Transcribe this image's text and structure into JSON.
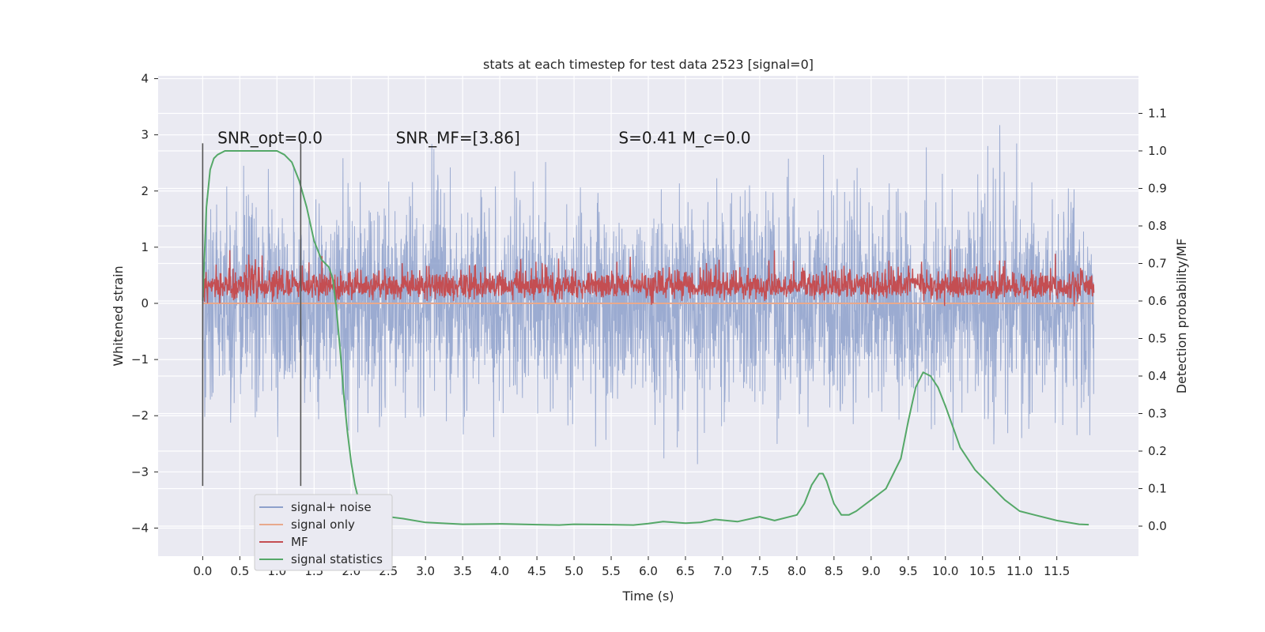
{
  "chart_data": {
    "type": "line",
    "title": "stats at each timestep for test data 2523 [signal=0]",
    "xlabel": "Time (s)",
    "ylabel": "Whitened strain",
    "y2label": "Detection probability/MF",
    "xlim": [
      -0.6,
      12.6
    ],
    "ylim": [
      -4.5,
      4.05
    ],
    "y2lim": [
      -0.08,
      1.2
    ],
    "xticks": [
      0.0,
      0.5,
      1.0,
      1.5,
      2.0,
      2.5,
      3.0,
      3.5,
      4.0,
      4.5,
      5.0,
      5.5,
      6.0,
      6.5,
      7.0,
      7.5,
      8.0,
      8.5,
      9.0,
      9.5,
      10.0,
      10.5,
      11.0,
      11.5
    ],
    "xtick_labels": [
      "0.0",
      "0.5",
      "1.0",
      "1.5",
      "2.0",
      "2.5",
      "3.0",
      "3.5",
      "4.0",
      "4.5",
      "5.0",
      "5.5",
      "6.0",
      "6.5",
      "7.0",
      "7.5",
      "8.0",
      "8.5",
      "9.0",
      "9.5",
      "10.0",
      "10.5",
      "11.0",
      "11.5"
    ],
    "yticks": [
      -4,
      -3,
      -2,
      -1,
      0,
      1,
      2,
      3,
      4
    ],
    "ytick_labels": [
      "−4",
      "−3",
      "−2",
      "−1",
      "0",
      "1",
      "2",
      "3",
      "4"
    ],
    "y2ticks": [
      0.0,
      0.1,
      0.2,
      0.3,
      0.4,
      0.5,
      0.6,
      0.7,
      0.8,
      0.9,
      1.0,
      1.1
    ],
    "y2tick_labels": [
      "0.0",
      "0.1",
      "0.2",
      "0.3",
      "0.4",
      "0.5",
      "0.6",
      "0.7",
      "0.8",
      "0.9",
      "1.0",
      "1.1"
    ],
    "grid": true,
    "legend_position": "lower-left",
    "annotations": [
      {
        "name": "snr-opt",
        "text": "SNR_opt=0.0",
        "x": 0.2,
        "y": 2.85
      },
      {
        "name": "snr-mf",
        "text": "SNR_MF=[3.86]",
        "x": 2.6,
        "y": 2.85
      },
      {
        "name": "s-mc",
        "text": "S=0.41   M_c=0.0",
        "x": 5.6,
        "y": 2.85
      }
    ],
    "vertical_markers": [
      {
        "x": 0.0,
        "y": [
          -3.25,
          2.85
        ]
      },
      {
        "x": 1.32,
        "y": [
          -3.25,
          2.85
        ]
      }
    ],
    "series": [
      {
        "name": "signal+ noise",
        "color": "#8da0cb",
        "axis": "left",
        "t_range": [
          0.0,
          12.0
        ],
        "description_values": {
          "mean": 0.0,
          "std": 0.9,
          "min": -4.1,
          "max": 3.7
        }
      },
      {
        "name": "signal only",
        "color": "#e8a98d",
        "axis": "left",
        "t_range": [
          0.0,
          12.0
        ],
        "constant": 0.0
      },
      {
        "name": "MF",
        "color": "#c44e52",
        "axis": "left",
        "t_range": [
          0.0,
          12.0
        ],
        "description_values": {
          "mean": 0.3,
          "min": -0.05,
          "max": 1.0
        }
      },
      {
        "name": "signal statistics",
        "color": "#55a868",
        "axis": "right",
        "x": [
          0.0,
          0.05,
          0.1,
          0.15,
          0.2,
          0.3,
          0.5,
          0.8,
          1.0,
          1.1,
          1.2,
          1.3,
          1.4,
          1.5,
          1.6,
          1.7,
          1.75,
          1.8,
          1.85,
          1.9,
          1.95,
          2.0,
          2.05,
          2.1,
          2.2,
          2.3,
          2.5,
          2.7,
          3.0,
          3.5,
          4.0,
          4.5,
          4.8,
          5.0,
          5.5,
          5.8,
          6.0,
          6.2,
          6.5,
          6.7,
          6.9,
          7.2,
          7.5,
          7.7,
          8.0,
          8.1,
          8.2,
          8.3,
          8.35,
          8.4,
          8.5,
          8.6,
          8.7,
          8.8,
          9.0,
          9.2,
          9.4,
          9.5,
          9.6,
          9.7,
          9.8,
          9.9,
          10.0,
          10.2,
          10.4,
          10.6,
          10.8,
          11.0,
          11.2,
          11.5,
          11.8,
          11.93
        ],
        "values": [
          0.6,
          0.85,
          0.95,
          0.98,
          0.99,
          1.0,
          1.0,
          1.0,
          1.0,
          0.99,
          0.97,
          0.92,
          0.85,
          0.76,
          0.71,
          0.69,
          0.66,
          0.58,
          0.47,
          0.35,
          0.25,
          0.17,
          0.11,
          0.07,
          0.04,
          0.03,
          0.025,
          0.02,
          0.01,
          0.005,
          0.006,
          0.004,
          0.003,
          0.005,
          0.004,
          0.003,
          0.007,
          0.012,
          0.008,
          0.01,
          0.018,
          0.012,
          0.025,
          0.015,
          0.03,
          0.06,
          0.11,
          0.14,
          0.14,
          0.12,
          0.06,
          0.03,
          0.03,
          0.04,
          0.07,
          0.1,
          0.18,
          0.28,
          0.37,
          0.41,
          0.4,
          0.37,
          0.32,
          0.21,
          0.15,
          0.11,
          0.07,
          0.04,
          0.03,
          0.015,
          0.005,
          0.004
        ]
      }
    ]
  }
}
